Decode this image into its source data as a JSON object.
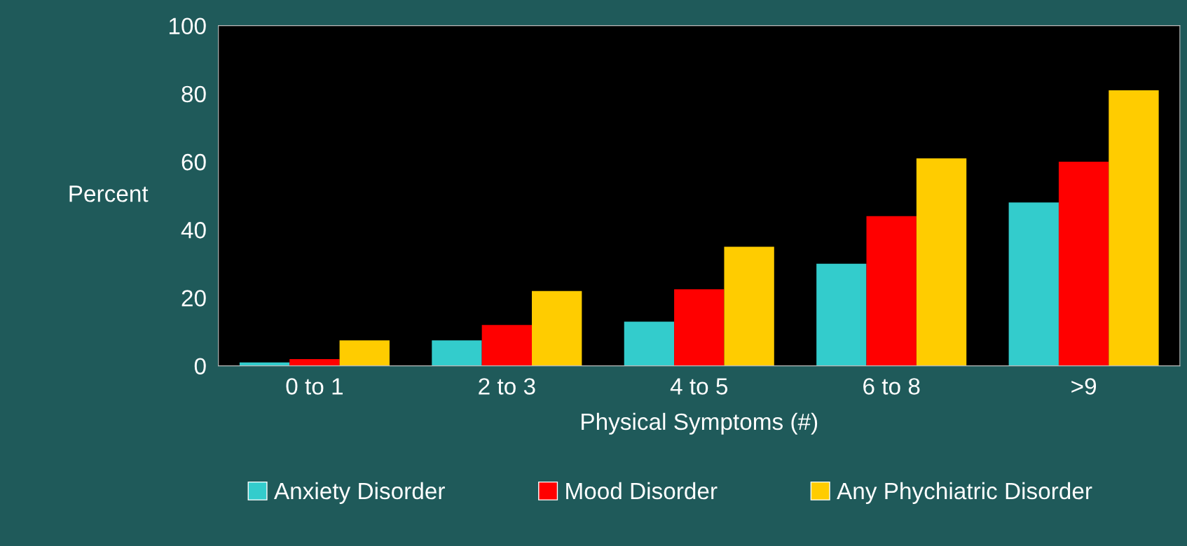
{
  "chart_data": {
    "type": "bar",
    "xlabel": "Physical Symptoms (#)",
    "ylabel": "Percent",
    "categories": [
      "0 to 1",
      "2 to 3",
      "4 to 5",
      "6 to 8",
      ">9"
    ],
    "series": [
      {
        "name": "Anxiety Disorder",
        "color": "#33cccc",
        "values": [
          1,
          7.5,
          13,
          30,
          48
        ]
      },
      {
        "name": "Mood Disorder",
        "color": "#ff0000",
        "values": [
          2,
          12,
          22.5,
          44,
          60
        ]
      },
      {
        "name": "Any Phychiatric Disorder",
        "color": "#ffcc00",
        "values": [
          7.5,
          22,
          35,
          61,
          81
        ]
      }
    ],
    "ylim": [
      0,
      100
    ],
    "yticks": [
      0,
      20,
      40,
      60,
      80,
      100
    ],
    "grid": false,
    "legend": "bottom"
  }
}
